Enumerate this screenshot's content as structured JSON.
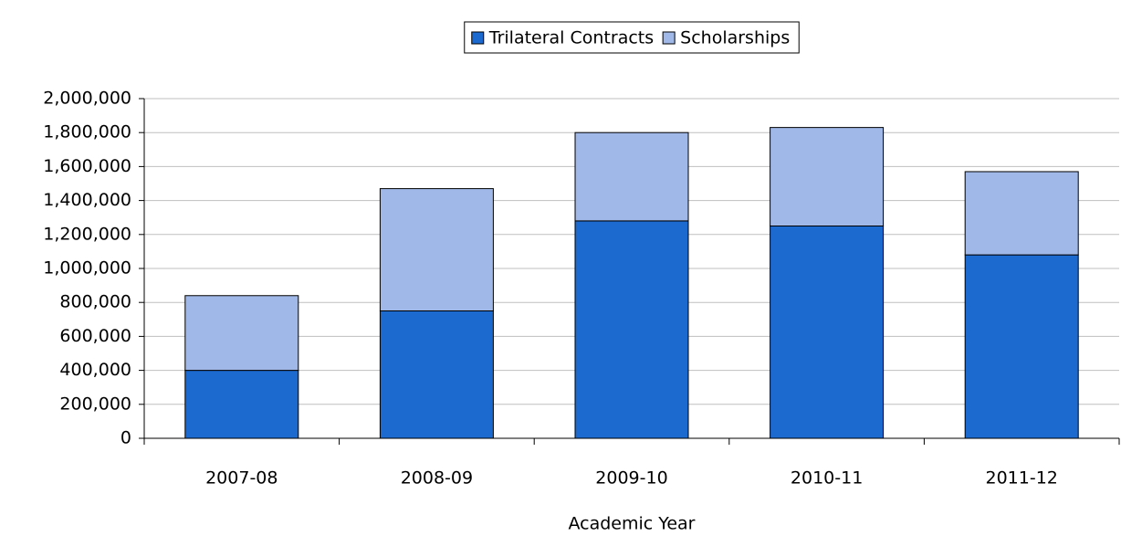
{
  "chart_data": {
    "type": "stacked_bar",
    "x_label": "Academic Year",
    "categories": [
      "2007-08",
      "2008-09",
      "2009-10",
      "2010-11",
      "2011-12"
    ],
    "series": [
      {
        "name": "Trilateral Contracts",
        "color": "#1c6ad0",
        "values": [
          400000,
          750000,
          1280000,
          1250000,
          1080000
        ]
      },
      {
        "name": "Scholarships",
        "color": "#a0b8e8",
        "values": [
          440000,
          720000,
          520000,
          580000,
          490000
        ]
      }
    ],
    "ylim": [
      0,
      2000000
    ],
    "yticks": [
      0,
      {
        "value": 200000,
        "label": "200,000"
      },
      {
        "value": 400000,
        "label": "400,000"
      },
      {
        "value": 600000,
        "label": "600,000"
      },
      {
        "value": 800000,
        "label": "800,000"
      },
      {
        "value": 1000000,
        "label": "1,000,000"
      },
      {
        "value": 1200000,
        "label": "1,200,000"
      },
      {
        "value": 1400000,
        "label": "1,400,000"
      },
      {
        "value": 1600000,
        "label": "1,600,000"
      },
      {
        "value": 1800000,
        "label": "1,800,000"
      },
      {
        "value": 2000000,
        "label": "2,000,000"
      }
    ],
    "grid": true,
    "legend": "top"
  }
}
